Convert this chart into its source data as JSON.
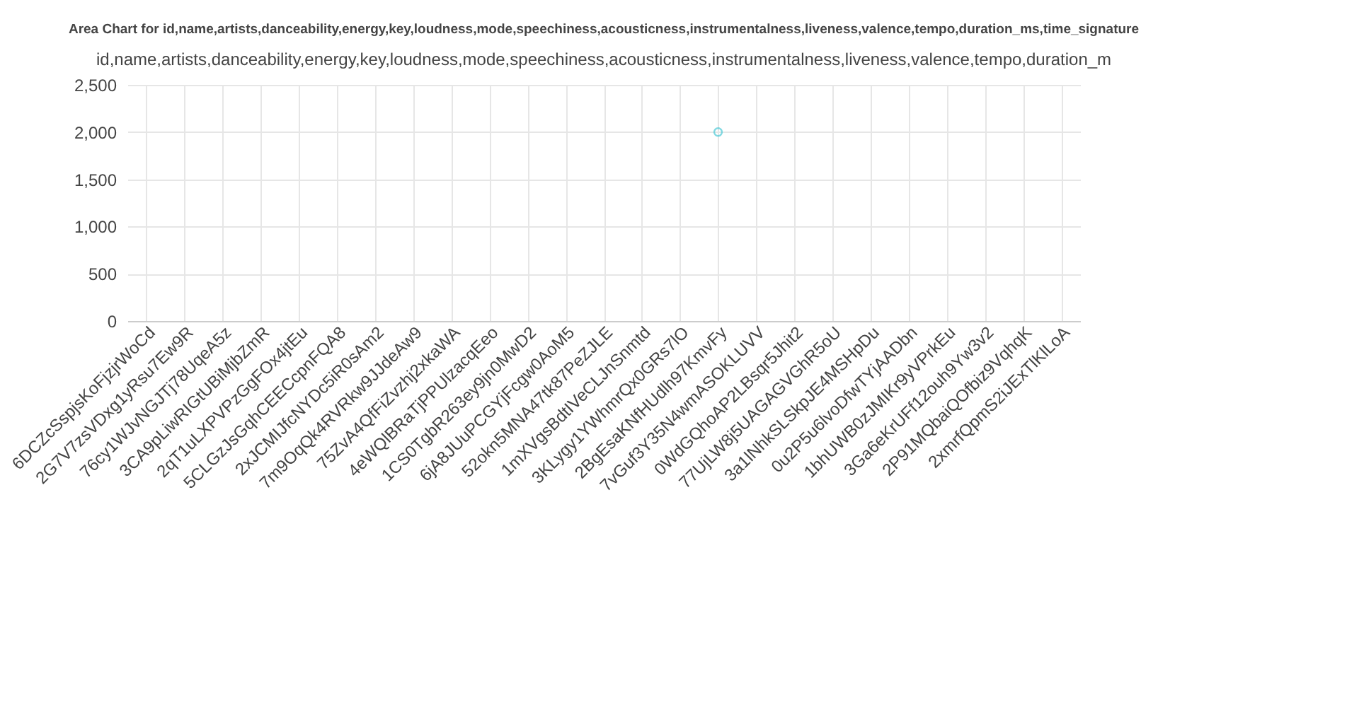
{
  "chart_data": {
    "type": "scatter",
    "title": "Area Chart for id,name,artists,danceability,energy,key,loudness,mode,speechiness,acousticness,instrumentalness,liveness,valence,tempo,duration_ms,time_signature",
    "subtitle": "id,name,artists,danceability,energy,key,loudness,mode,speechiness,acousticness,instrumentalness,liveness,valence,tempo,duration_m",
    "categories": [
      "6DCZcSspjsKoFjzjrWoCd",
      "2G7V7zsVDxg1yRsu7Ew9R",
      "76cy1WJvNGJTj78UqeA5z",
      "3CA9pLiwRIGtUBiMjbZmR",
      "2qT1uLXPVPzGgFOx4jtEu",
      "5CLGzJsGqhCEECcpnFQA8",
      "2xJCMIJfcNYDc5iR0sAm2",
      "7m9OqQk4RVRkw9JJdeAw9",
      "75ZvA4QfFiZvzhj2xkaWA",
      "4eWQlBRaTjPPUlzacqEeo",
      "1CS0TgbR263ey9jn0MwD2",
      "6jA8JUuPCGYjFcgw0AoM5",
      "52okn5MNA47tk87PeZJLE",
      "1mXVgsBdtIVeCLJnSnmtd",
      "3KLygy1YWhmrQx0GRs7lO",
      "2BgEsaKNfHUdlh97KmvFy",
      "7vGuf3Y35N4wmASOKLUVV",
      "0WdGQhoAP2LBsqr5Jhit2",
      "77UjLW8j5UAGAGVGhR5oU",
      "3a1lNhkSLSkpJE4MSHpDu",
      "0u2P5u6lvoDfwTYjAADbn",
      "1bhUWB0zJMIKr9yVPrkEu",
      "3Ga6eKrUFf12ouh9Yw3v2",
      "2P91MQbaiQOfbiz9VqhqK",
      "2xmrfQpmS2iJExTlKlLoA"
    ],
    "series": [
      {
        "color": "#4dc9d6",
        "values": [
          null,
          null,
          null,
          null,
          null,
          null,
          null,
          null,
          null,
          null,
          null,
          null,
          null,
          null,
          null,
          2000,
          null,
          null,
          null,
          null,
          null,
          null,
          null,
          null,
          null
        ]
      }
    ],
    "ylim": [
      0,
      2500
    ],
    "yticks": [
      0,
      500,
      {
        "value": 1000,
        "label": "1,000"
      },
      {
        "value": 1500,
        "label": "1,500"
      },
      {
        "value": 2000,
        "label": "2,000"
      },
      {
        "value": 2500,
        "label": "2,500"
      }
    ],
    "grid": true,
    "marker": "circle"
  }
}
